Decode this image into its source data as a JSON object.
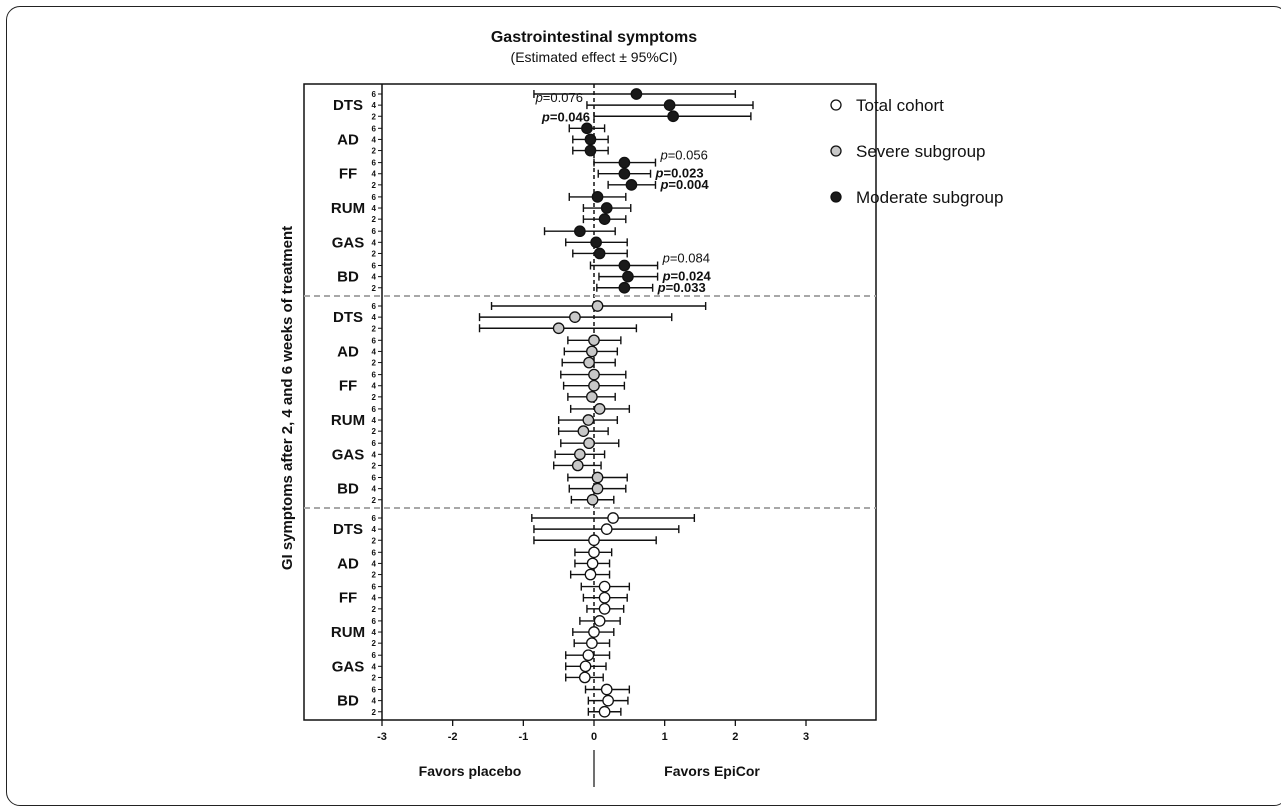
{
  "chart_data": {
    "type": "forest",
    "title": "Gastrointestinal symptoms",
    "subtitle": "(Estimated effect ± 95%CI)",
    "ylabel": "GI symptoms after 2, 4 and 6 weeks of treatment",
    "xlim": [
      -3,
      3
    ],
    "xticks": [
      "-3",
      "-2",
      "-1",
      "0",
      "1",
      "2",
      "3"
    ],
    "favors_left": "Favors placebo",
    "favors_right": "Favors EpiCor",
    "categories": [
      "DTS",
      "AD",
      "FF",
      "RUM",
      "GAS",
      "BD"
    ],
    "weeks": [
      "6",
      "4",
      "2"
    ],
    "legend": [
      {
        "name": "Total cohort",
        "fill": "#ffffff"
      },
      {
        "name": "Severe subgroup",
        "fill": "#c8c8c8"
      },
      {
        "name": "Moderate subgroup",
        "fill": "#1a1a1a"
      }
    ],
    "series": [
      {
        "name": "Moderate subgroup",
        "fill": "#1a1a1a",
        "rows": [
          {
            "cat": "DTS",
            "week": "6",
            "est": 0.6,
            "lo": -0.85,
            "hi": 2.0
          },
          {
            "cat": "DTS",
            "week": "4",
            "est": 1.07,
            "lo": -0.1,
            "hi": 2.25,
            "p": "p=0.076",
            "bold": false
          },
          {
            "cat": "DTS",
            "week": "2",
            "est": 1.12,
            "lo": 0.0,
            "hi": 2.22,
            "p": "p=0.046",
            "bold": true
          },
          {
            "cat": "AD",
            "week": "6",
            "est": -0.1,
            "lo": -0.35,
            "hi": 0.15
          },
          {
            "cat": "AD",
            "week": "4",
            "est": -0.05,
            "lo": -0.3,
            "hi": 0.2
          },
          {
            "cat": "AD",
            "week": "2",
            "est": -0.05,
            "lo": -0.3,
            "hi": 0.2
          },
          {
            "cat": "FF",
            "week": "6",
            "est": 0.43,
            "lo": 0.0,
            "hi": 0.87,
            "p": "p=0.056",
            "bold": false
          },
          {
            "cat": "FF",
            "week": "4",
            "est": 0.43,
            "lo": 0.06,
            "hi": 0.8,
            "p": "p=0.023",
            "bold": true
          },
          {
            "cat": "FF",
            "week": "2",
            "est": 0.53,
            "lo": 0.2,
            "hi": 0.87,
            "p": "p=0.004",
            "bold": true
          },
          {
            "cat": "RUM",
            "week": "6",
            "est": 0.05,
            "lo": -0.35,
            "hi": 0.45
          },
          {
            "cat": "RUM",
            "week": "4",
            "est": 0.18,
            "lo": -0.15,
            "hi": 0.52
          },
          {
            "cat": "RUM",
            "week": "2",
            "est": 0.15,
            "lo": -0.15,
            "hi": 0.45
          },
          {
            "cat": "GAS",
            "week": "6",
            "est": -0.2,
            "lo": -0.7,
            "hi": 0.3
          },
          {
            "cat": "GAS",
            "week": "4",
            "est": 0.03,
            "lo": -0.4,
            "hi": 0.47
          },
          {
            "cat": "GAS",
            "week": "2",
            "est": 0.08,
            "lo": -0.3,
            "hi": 0.47
          },
          {
            "cat": "BD",
            "week": "6",
            "est": 0.43,
            "lo": -0.05,
            "hi": 0.9,
            "p": "p=0.084",
            "bold": false
          },
          {
            "cat": "BD",
            "week": "4",
            "est": 0.48,
            "lo": 0.07,
            "hi": 0.9,
            "p": "p=0.024",
            "bold": true
          },
          {
            "cat": "BD",
            "week": "2",
            "est": 0.43,
            "lo": 0.04,
            "hi": 0.83,
            "p": "p=0.033",
            "bold": true
          }
        ]
      },
      {
        "name": "Severe subgroup",
        "fill": "#c8c8c8",
        "rows": [
          {
            "cat": "DTS",
            "week": "6",
            "est": 0.05,
            "lo": -1.45,
            "hi": 1.58
          },
          {
            "cat": "DTS",
            "week": "4",
            "est": -0.27,
            "lo": -1.62,
            "hi": 1.1
          },
          {
            "cat": "DTS",
            "week": "2",
            "est": -0.5,
            "lo": -1.62,
            "hi": 0.6
          },
          {
            "cat": "AD",
            "week": "6",
            "est": 0.0,
            "lo": -0.37,
            "hi": 0.38
          },
          {
            "cat": "AD",
            "week": "4",
            "est": -0.03,
            "lo": -0.42,
            "hi": 0.33
          },
          {
            "cat": "AD",
            "week": "2",
            "est": -0.07,
            "lo": -0.45,
            "hi": 0.3
          },
          {
            "cat": "FF",
            "week": "6",
            "est": 0.0,
            "lo": -0.47,
            "hi": 0.45
          },
          {
            "cat": "FF",
            "week": "4",
            "est": 0.0,
            "lo": -0.43,
            "hi": 0.43
          },
          {
            "cat": "FF",
            "week": "2",
            "est": -0.03,
            "lo": -0.37,
            "hi": 0.3
          },
          {
            "cat": "RUM",
            "week": "6",
            "est": 0.08,
            "lo": -0.33,
            "hi": 0.5
          },
          {
            "cat": "RUM",
            "week": "4",
            "est": -0.08,
            "lo": -0.5,
            "hi": 0.33
          },
          {
            "cat": "RUM",
            "week": "2",
            "est": -0.15,
            "lo": -0.5,
            "hi": 0.2
          },
          {
            "cat": "GAS",
            "week": "6",
            "est": -0.07,
            "lo": -0.47,
            "hi": 0.35
          },
          {
            "cat": "GAS",
            "week": "4",
            "est": -0.2,
            "lo": -0.55,
            "hi": 0.15
          },
          {
            "cat": "GAS",
            "week": "2",
            "est": -0.23,
            "lo": -0.57,
            "hi": 0.1
          },
          {
            "cat": "BD",
            "week": "6",
            "est": 0.05,
            "lo": -0.37,
            "hi": 0.47
          },
          {
            "cat": "BD",
            "week": "4",
            "est": 0.05,
            "lo": -0.35,
            "hi": 0.45
          },
          {
            "cat": "BD",
            "week": "2",
            "est": -0.02,
            "lo": -0.32,
            "hi": 0.28
          }
        ]
      },
      {
        "name": "Total cohort",
        "fill": "#ffffff",
        "rows": [
          {
            "cat": "DTS",
            "week": "6",
            "est": 0.27,
            "lo": -0.88,
            "hi": 1.42
          },
          {
            "cat": "DTS",
            "week": "4",
            "est": 0.18,
            "lo": -0.85,
            "hi": 1.2
          },
          {
            "cat": "DTS",
            "week": "2",
            "est": 0.0,
            "lo": -0.85,
            "hi": 0.88
          },
          {
            "cat": "AD",
            "week": "6",
            "est": 0.0,
            "lo": -0.27,
            "hi": 0.25
          },
          {
            "cat": "AD",
            "week": "4",
            "est": -0.02,
            "lo": -0.27,
            "hi": 0.22
          },
          {
            "cat": "AD",
            "week": "2",
            "est": -0.05,
            "lo": -0.33,
            "hi": 0.22
          },
          {
            "cat": "FF",
            "week": "6",
            "est": 0.15,
            "lo": -0.18,
            "hi": 0.5
          },
          {
            "cat": "FF",
            "week": "4",
            "est": 0.15,
            "lo": -0.15,
            "hi": 0.47
          },
          {
            "cat": "FF",
            "week": "2",
            "est": 0.15,
            "lo": -0.1,
            "hi": 0.42
          },
          {
            "cat": "RUM",
            "week": "6",
            "est": 0.08,
            "lo": -0.2,
            "hi": 0.37
          },
          {
            "cat": "RUM",
            "week": "4",
            "est": 0.0,
            "lo": -0.3,
            "hi": 0.28
          },
          {
            "cat": "RUM",
            "week": "2",
            "est": -0.03,
            "lo": -0.28,
            "hi": 0.22
          },
          {
            "cat": "GAS",
            "week": "6",
            "est": -0.08,
            "lo": -0.4,
            "hi": 0.22
          },
          {
            "cat": "GAS",
            "week": "4",
            "est": -0.12,
            "lo": -0.4,
            "hi": 0.17
          },
          {
            "cat": "GAS",
            "week": "2",
            "est": -0.13,
            "lo": -0.4,
            "hi": 0.13
          },
          {
            "cat": "BD",
            "week": "6",
            "est": 0.18,
            "lo": -0.12,
            "hi": 0.5
          },
          {
            "cat": "BD",
            "week": "4",
            "est": 0.2,
            "lo": -0.08,
            "hi": 0.48
          },
          {
            "cat": "BD",
            "week": "2",
            "est": 0.15,
            "lo": -0.08,
            "hi": 0.38
          }
        ]
      }
    ]
  }
}
